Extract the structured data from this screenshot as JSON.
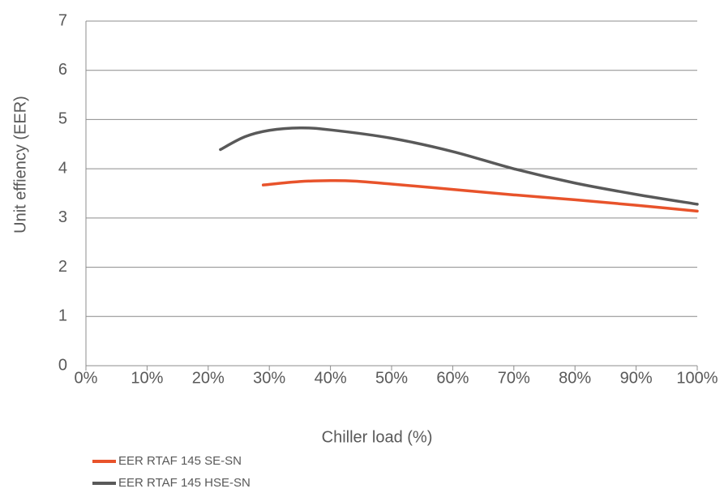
{
  "chart_data": {
    "type": "line",
    "xlabel": "Chiller load (%)",
    "ylabel": "Unit effiency (EER)",
    "xlim": [
      0,
      100
    ],
    "ylim": [
      0,
      7
    ],
    "x_ticks": [
      "0%",
      "10%",
      "20%",
      "30%",
      "40%",
      "50%",
      "60%",
      "70%",
      "80%",
      "90%",
      "100%"
    ],
    "y_ticks": [
      "0",
      "1",
      "2",
      "3",
      "4",
      "5",
      "6",
      "7"
    ],
    "grid": "horizontal",
    "legend_position": "bottom-left",
    "series": [
      {
        "name": "EER RTAF 145 SE-SN",
        "color": "#e8532b",
        "x": [
          29,
          35,
          40,
          44,
          50,
          60,
          70,
          80,
          90,
          100
        ],
        "y": [
          3.67,
          3.74,
          3.76,
          3.75,
          3.69,
          3.58,
          3.47,
          3.37,
          3.26,
          3.14
        ]
      },
      {
        "name": "EER RTAF 145 HSE-SN",
        "color": "#595959",
        "x": [
          22,
          26,
          30,
          35,
          40,
          50,
          60,
          70,
          80,
          90,
          100
        ],
        "y": [
          4.39,
          4.65,
          4.78,
          4.83,
          4.79,
          4.62,
          4.35,
          4.0,
          3.71,
          3.48,
          3.28
        ]
      }
    ]
  }
}
